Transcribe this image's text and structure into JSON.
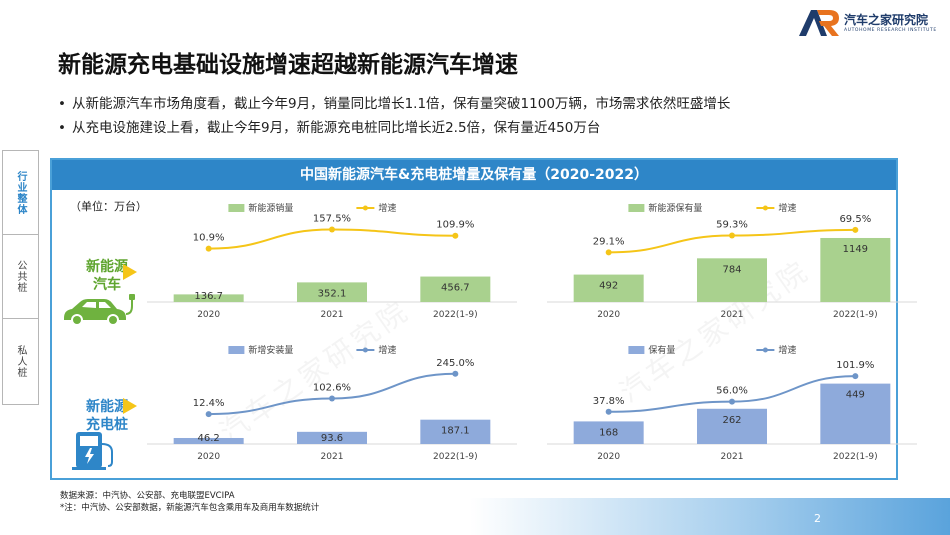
{
  "brand": {
    "logo_mark": "AR",
    "name": "汽车之家研究院",
    "sub": "AUTOHOME RESEARCH INSTITUTE",
    "accent": "#2e86c8",
    "accent_orange": "#e8731f",
    "green": "#a9d18e",
    "blue_bar": "#8eaadb",
    "line_yellow": "#f5c518",
    "line_blue": "#6e95c8"
  },
  "page_title": "新能源充电基础设施增速超越新能源汽车增速",
  "bullets": [
    "从新能源汽车市场角度看，截止今年9月，销量同比增长1.1倍，保有量突破1100万辆，市场需求依然旺盛增长",
    "从充电设施建设上看，截止今年9月，新能源充电桩同比增长近2.5倍，保有量近450万台"
  ],
  "side_nav": {
    "items": [
      {
        "label": "行业整体",
        "active": true
      },
      {
        "label": "公共桩",
        "active": false
      },
      {
        "label": "私人桩",
        "active": false
      }
    ]
  },
  "panel": {
    "title": "中国新能源汽车&充电桩增量及保有量（2020-2022）",
    "unit": "（单位：万台）"
  },
  "categories_side": {
    "ev": {
      "line1": "新能源",
      "line2": "汽车",
      "icon": "electric-car-icon"
    },
    "pile": {
      "line1": "新能源",
      "line2": "充电桩",
      "icon": "charging-pile-icon"
    }
  },
  "watermark": "汽车之家研究院",
  "chart_data": [
    {
      "id": "ev-sales",
      "type": "bar",
      "categories": [
        "2020",
        "2021",
        "2022(1-9)"
      ],
      "series": [
        {
          "name": "新能源销量",
          "kind": "bar",
          "values": [
            136.7,
            352.1,
            456.7
          ],
          "labels": [
            "136.7",
            "352.1",
            "456.7"
          ],
          "color": "#a9d18e"
        },
        {
          "name": "增速",
          "kind": "line",
          "values": [
            10.9,
            157.5,
            109.9
          ],
          "labels": [
            "10.9%",
            "157.5%",
            "109.9%"
          ],
          "color": "#f5c518"
        }
      ],
      "ylim_bar": [
        0,
        1400
      ],
      "ylim_line": [
        -400,
        200
      ]
    },
    {
      "id": "ev-stock",
      "type": "bar",
      "categories": [
        "2020",
        "2021",
        "2022(1-9)"
      ],
      "series": [
        {
          "name": "新能源保有量",
          "kind": "bar",
          "values": [
            492,
            784,
            1149
          ],
          "labels": [
            "492",
            "784",
            "1149"
          ],
          "color": "#a9d18e"
        },
        {
          "name": "增速",
          "kind": "line",
          "values": [
            29.1,
            59.3,
            69.5
          ],
          "labels": [
            "29.1%",
            "59.3%",
            "69.5%"
          ],
          "color": "#f5c518"
        }
      ],
      "ylim_bar": [
        0,
        1400
      ],
      "ylim_line": [
        -60,
        80
      ]
    },
    {
      "id": "pile-new",
      "type": "bar",
      "categories": [
        "2020",
        "2021",
        "2022(1-9)"
      ],
      "series": [
        {
          "name": "新增安装量",
          "kind": "bar",
          "values": [
            46.2,
            93.6,
            187.1
          ],
          "labels": [
            "46.2",
            "93.6",
            "187.1"
          ],
          "color": "#8eaadb"
        },
        {
          "name": "增速",
          "kind": "line",
          "values": [
            12.4,
            102.6,
            245.0
          ],
          "labels": [
            "12.4%",
            "102.6%",
            "245.0%"
          ],
          "color": "#6e95c8"
        }
      ],
      "ylim_bar": [
        0,
        600
      ],
      "ylim_line": [
        -160,
        290
      ]
    },
    {
      "id": "pile-stock",
      "type": "bar",
      "categories": [
        "2020",
        "2021",
        "2022(1-9)"
      ],
      "series": [
        {
          "name": "保有量",
          "kind": "bar",
          "values": [
            168,
            262,
            449
          ],
          "labels": [
            "168",
            "262",
            "449"
          ],
          "color": "#8eaadb"
        },
        {
          "name": "增速",
          "kind": "line",
          "values": [
            37.8,
            56.0,
            101.9
          ],
          "labels": [
            "37.8%",
            "56.0%",
            "101.9%"
          ],
          "color": "#6e95c8"
        }
      ],
      "ylim_bar": [
        0,
        580
      ],
      "ylim_line": [
        -20,
        120
      ]
    }
  ],
  "footnotes": [
    "数据来源：中汽协、公安部、充电联盟EVCIPA",
    "*注：中汽协、公安部数据，新能源汽车包含乘用车及商用车数据统计"
  ],
  "page_number": "2"
}
